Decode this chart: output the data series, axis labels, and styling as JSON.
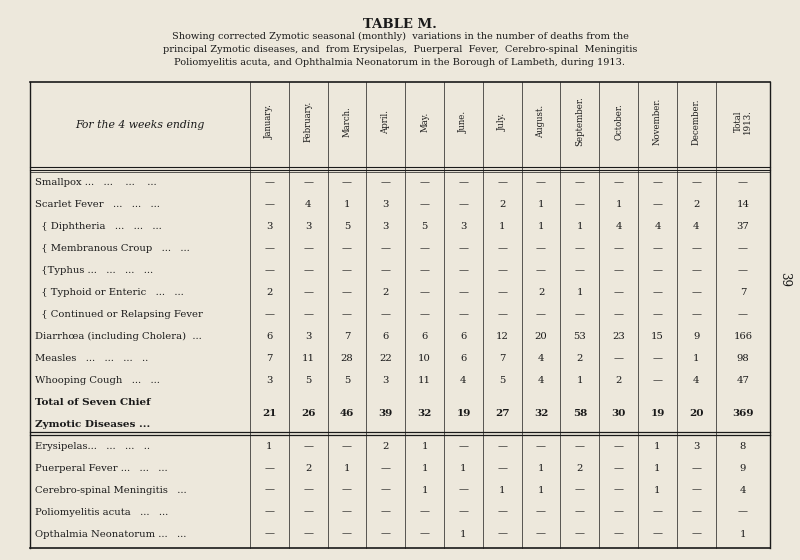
{
  "title": "TABLE M.",
  "subtitle_lines": [
    "Showing corrected Zymotic seasonal (monthly)  variations in the number of deaths from the",
    "principal Zymotic diseases, and  from Erysipelas,  Puerperal  Fever,  Cerebro-spinal  Meningitis",
    "Poliomyelitis acuta, and Ophthalmia Neonatorum in the Borough of Lambeth, during 1913."
  ],
  "col_header_label": "For the 4 weeks ending",
  "columns": [
    "January.",
    "February.",
    "March.",
    "April.",
    "May.",
    "June.",
    "July.",
    "August.",
    "September.",
    "October.",
    "November.",
    "December.",
    "Total\n1913."
  ],
  "rows": [
    {
      "label": "Smallpox ...   ...    ...    ...",
      "bold": false,
      "values": [
        "—",
        "—",
        "—",
        "—",
        "—",
        "—",
        "—",
        "—",
        "—",
        "—",
        "—",
        "—",
        "—"
      ]
    },
    {
      "label": "Scarlet Fever   ...   ...   ...",
      "bold": false,
      "values": [
        "—",
        "4",
        "1",
        "3",
        "—",
        "—",
        "2",
        "1",
        "—",
        "1",
        "—",
        "2",
        "14"
      ]
    },
    {
      "label": "  { Diphtheria   ...   ...   ...",
      "bold": false,
      "values": [
        "3",
        "3",
        "5",
        "3",
        "5",
        "3",
        "1",
        "1",
        "1",
        "4",
        "4",
        "4",
        "37"
      ]
    },
    {
      "label": "  { Membranous Croup   ...   ...",
      "bold": false,
      "values": [
        "—",
        "—",
        "—",
        "—",
        "—",
        "—",
        "—",
        "—",
        "—",
        "—",
        "—",
        "—",
        "—"
      ]
    },
    {
      "label": "  {Typhus ...   ...   ...   ...",
      "bold": false,
      "values": [
        "—",
        "—",
        "—",
        "—",
        "—",
        "—",
        "—",
        "—",
        "—",
        "—",
        "—",
        "—",
        "—"
      ]
    },
    {
      "label": "  { Typhoid or Enteric   ...   ...",
      "bold": false,
      "values": [
        "2",
        "—",
        "—",
        "2",
        "—",
        "—",
        "—",
        "2",
        "1",
        "—",
        "—",
        "—",
        "7"
      ]
    },
    {
      "label": "  { Continued or Relapsing Fever",
      "bold": false,
      "values": [
        "—",
        "—",
        "—",
        "—",
        "—",
        "—",
        "—",
        "—",
        "—",
        "—",
        "—",
        "—",
        "—"
      ]
    },
    {
      "label": "Diarrhœa (including Cholera)  ...",
      "bold": false,
      "values": [
        "6",
        "3",
        "7",
        "6",
        "6",
        "6",
        "12",
        "20",
        "53",
        "23",
        "15",
        "9",
        "166"
      ]
    },
    {
      "label": "Measles   ...   ...   ...   ..",
      "bold": false,
      "values": [
        "7",
        "11",
        "28",
        "22",
        "10",
        "6",
        "7",
        "4",
        "2",
        "—",
        "—",
        "1",
        "98"
      ]
    },
    {
      "label": "Whooping Cough   ...   ...",
      "bold": false,
      "values": [
        "3",
        "5",
        "5",
        "3",
        "11",
        "4",
        "5",
        "4",
        "1",
        "2",
        "—",
        "4",
        "47"
      ]
    },
    {
      "label": "Total of Seven Chief\nZymotic Diseases ...",
      "bold": true,
      "values": [
        "21",
        "26",
        "46",
        "39",
        "32",
        "19",
        "27",
        "32",
        "58",
        "30",
        "19",
        "20",
        "369"
      ]
    },
    {
      "label": "Erysipelas...   ...   ...   ..",
      "bold": false,
      "values": [
        "1",
        "—",
        "—",
        "2",
        "1",
        "—",
        "—",
        "—",
        "—",
        "—",
        "1",
        "3",
        "8"
      ]
    },
    {
      "label": "Puerperal Fever ...   ...   ...",
      "bold": false,
      "values": [
        "—",
        "2",
        "1",
        "—",
        "1",
        "1",
        "—",
        "1",
        "2",
        "—",
        "1",
        "—",
        "9"
      ]
    },
    {
      "label": "Cerebro-spinal Meningitis   ...",
      "bold": false,
      "values": [
        "—",
        "—",
        "—",
        "—",
        "1",
        "—",
        "1",
        "1",
        "—",
        "—",
        "1",
        "—",
        "4"
      ]
    },
    {
      "label": "Poliomyelitis acuta   ...   ...",
      "bold": false,
      "values": [
        "—",
        "—",
        "—",
        "—",
        "—",
        "—",
        "—",
        "—",
        "—",
        "—",
        "—",
        "—",
        "—"
      ]
    },
    {
      "label": "Opthalmia Neonatorum ...   ...",
      "bold": false,
      "values": [
        "—",
        "—",
        "—",
        "—",
        "—",
        "1",
        "—",
        "—",
        "—",
        "—",
        "—",
        "—",
        "1"
      ]
    }
  ],
  "bg_color": "#ede8dc",
  "text_color": "#1a1a1a",
  "line_color": "#1a1a1a",
  "page_number": "39"
}
